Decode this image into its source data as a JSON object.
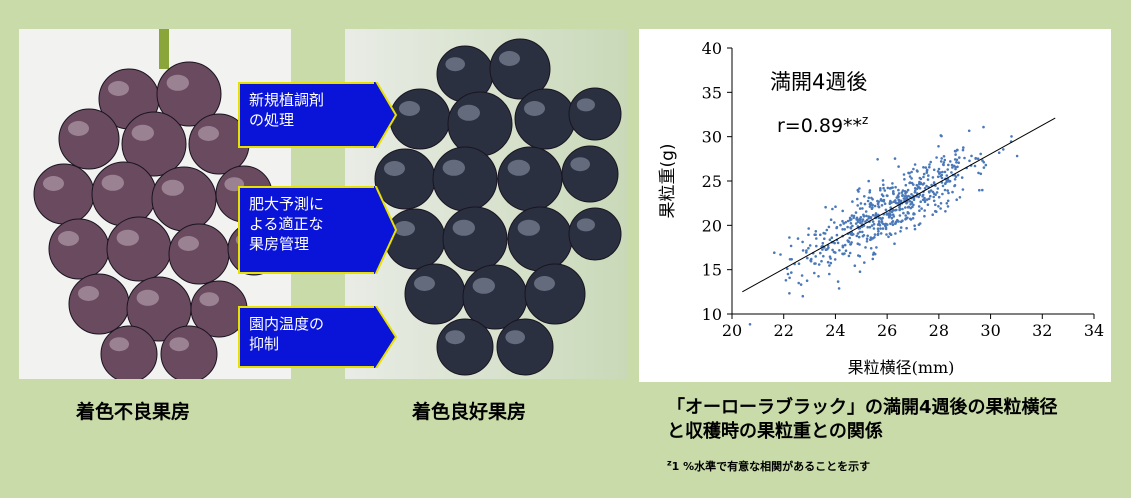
{
  "photos": {
    "left_caption": "着色不良果房",
    "right_caption": "着色良好果房"
  },
  "arrows": [
    {
      "lines": [
        "新規植調剤",
        "の処理"
      ]
    },
    {
      "lines": [
        "肥大予測に",
        "よる適正な",
        "果房管理"
      ]
    },
    {
      "lines": [
        "園内温度の",
        "抑制"
      ]
    }
  ],
  "chart_data": {
    "type": "scatter",
    "annotation_title": "満開4週後",
    "annotation_r": "r=0.89**",
    "annotation_r_sup": "z",
    "xlabel": "果粒横径(mm)",
    "ylabel": "果粒重(g)",
    "xlim": [
      20,
      34
    ],
    "ylim": [
      10,
      40
    ],
    "xticks": [
      "20",
      "22",
      "24",
      "26",
      "28",
      "30",
      "32",
      "34"
    ],
    "yticks": [
      "10",
      "15",
      "20",
      "25",
      "30",
      "35",
      "40"
    ],
    "trendline": {
      "x": [
        20.4,
        32.5
      ],
      "y": [
        12.5,
        32.1
      ]
    },
    "point_count": 620,
    "grid": false,
    "point_color": "#4a78b8"
  },
  "chart_caption": {
    "line1": "「オーローラブラック」の満開4週後の果粒横径",
    "line2": "と収穫時の果粒重との関係"
  },
  "footnote": {
    "sup": "z",
    "text": "1 %水準で有意な相関があることを示す"
  }
}
